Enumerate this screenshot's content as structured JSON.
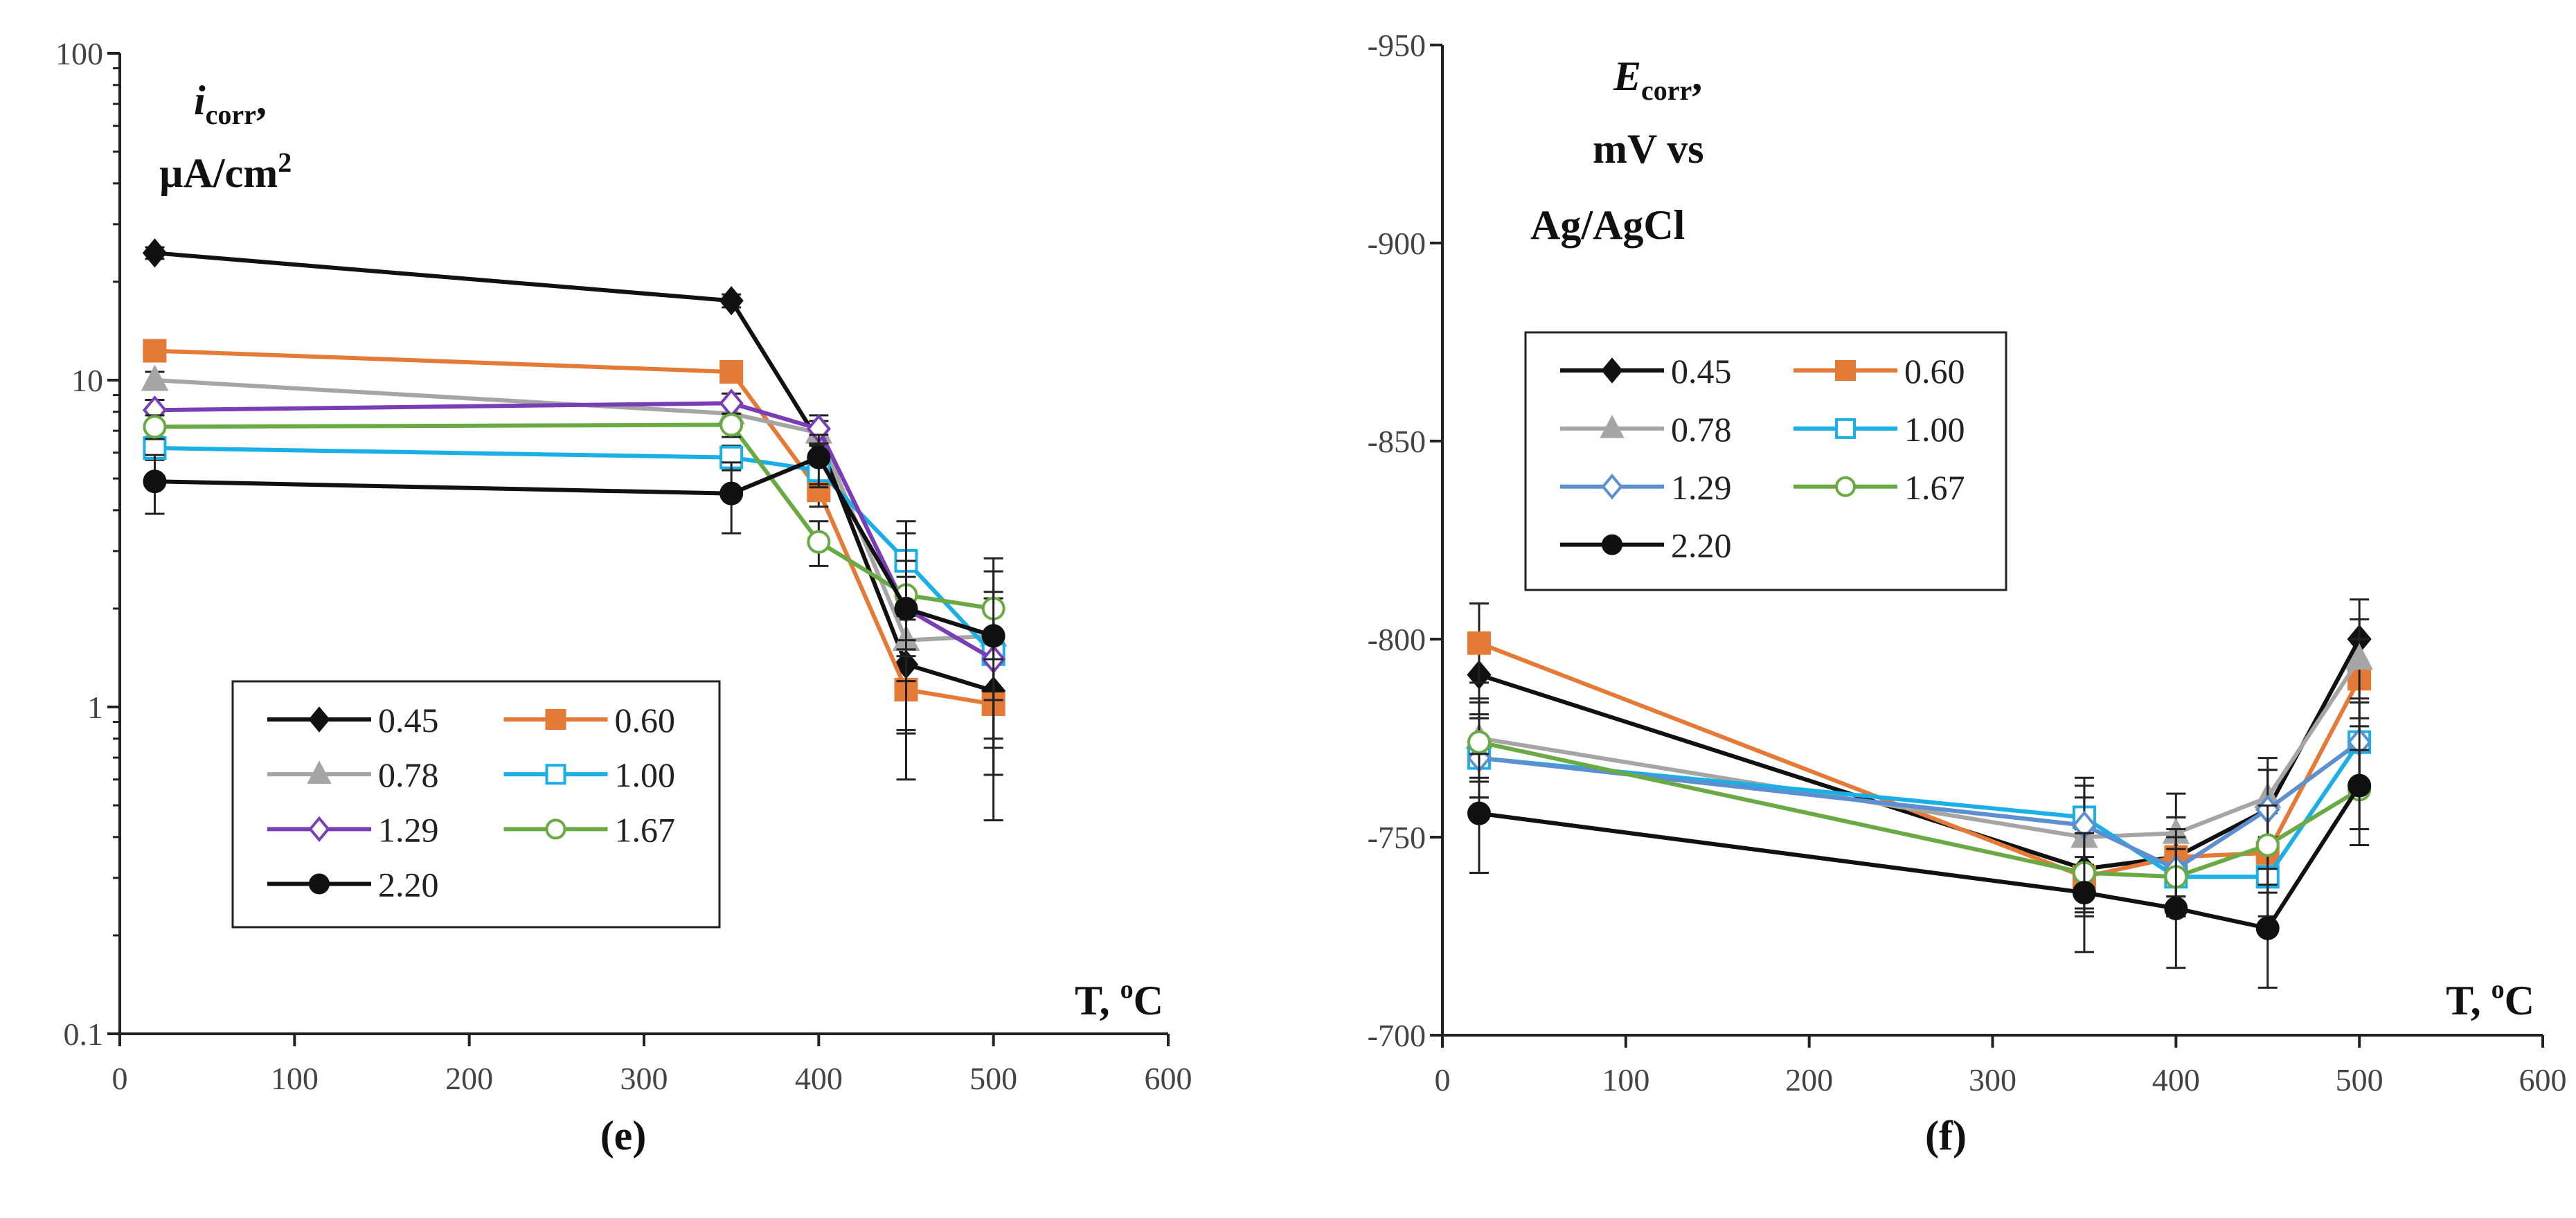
{
  "chart_data": [
    {
      "type": "line",
      "panel_label": "(e)",
      "ylabel_main": "i",
      "ylabel_sub": "corr",
      "ylabel_suffix": ",",
      "ylabel_unit": "µA/cm",
      "ylabel_unit_sup": "2",
      "xlabel": "T, ",
      "xlabel_sup": "o",
      "xlabel_tail": "C",
      "yscale": "log",
      "xlim": [
        0,
        600
      ],
      "ylim": [
        0.1,
        100
      ],
      "xticks": [
        "0",
        "100",
        "200",
        "300",
        "400",
        "500",
        "600"
      ],
      "yticks": [
        "0.1",
        "1",
        "10",
        "100"
      ],
      "legend_position": "lower-left",
      "x": [
        20,
        350,
        400,
        450,
        500
      ],
      "series": [
        {
          "name": "0.45",
          "color": "#111111",
          "marker": "diamond",
          "filled": true,
          "values": [
            24.5,
            17.5,
            6.5,
            1.35,
            1.12
          ],
          "yerr": [
            1.0,
            0.8,
            1.0,
            0.5,
            0.5
          ]
        },
        {
          "name": "0.60",
          "color": "#E47A35",
          "marker": "square",
          "filled": true,
          "values": [
            12.3,
            10.6,
            4.6,
            1.13,
            1.02
          ],
          "yerr": [
            0.6,
            0.6,
            0.5,
            0.3,
            0.4
          ]
        },
        {
          "name": "0.78",
          "color": "#A5A5A5",
          "marker": "triangle",
          "filled": true,
          "values": [
            10.0,
            7.9,
            6.9,
            1.6,
            1.65
          ],
          "yerr": [
            0.6,
            0.6,
            0.6,
            0.4,
            0.6
          ]
        },
        {
          "name": "1.00",
          "color": "#1AAFE6",
          "marker": "square",
          "filled": false,
          "values": [
            6.2,
            5.8,
            5.3,
            2.8,
            1.45
          ],
          "yerr": [
            0.5,
            0.5,
            0.6,
            0.9,
            0.7
          ]
        },
        {
          "name": "1.29",
          "color": "#7A3DB8",
          "marker": "diamond",
          "filled": false,
          "values": [
            8.1,
            8.5,
            7.1,
            2.0,
            1.4
          ],
          "yerr": [
            0.6,
            0.6,
            0.7,
            0.5,
            0.6
          ]
        },
        {
          "name": "1.67",
          "color": "#6AAA45",
          "marker": "circle",
          "filled": false,
          "values": [
            7.2,
            7.3,
            3.2,
            2.2,
            2.0
          ],
          "yerr": [
            0.6,
            0.6,
            0.5,
            0.6,
            0.6
          ]
        },
        {
          "name": "2.20",
          "color": "#111111",
          "marker": "circle",
          "filled": true,
          "values": [
            4.9,
            4.5,
            5.8,
            2.0,
            1.65
          ],
          "yerr": [
            1.0,
            1.1,
            1.0,
            1.4,
            1.2
          ]
        }
      ]
    },
    {
      "type": "line",
      "panel_label": "(f)",
      "ylabel_main": "E",
      "ylabel_sub": "corr",
      "ylabel_suffix": ",",
      "ylabel_unit": "mV vs",
      "ylabel_unit2": "Ag/AgCl",
      "xlabel": "T, ",
      "xlabel_sup": "o",
      "xlabel_tail": "C",
      "yscale": "linear",
      "y_reversed": true,
      "xlim": [
        0,
        600
      ],
      "ylim": [
        -700,
        -950
      ],
      "xticks": [
        "0",
        "100",
        "200",
        "300",
        "400",
        "500",
        "600"
      ],
      "yticks": [
        "-700",
        "-750",
        "-800",
        "-850",
        "-900",
        "-950"
      ],
      "legend_position": "upper-left",
      "x": [
        20,
        350,
        400,
        450,
        500
      ],
      "series": [
        {
          "name": "0.45",
          "color": "#111111",
          "marker": "diamond",
          "filled": true,
          "values": [
            -791,
            -742,
            -745,
            -757,
            -800
          ],
          "yerr": [
            10,
            10,
            10,
            10,
            10
          ]
        },
        {
          "name": "0.60",
          "color": "#E47A35",
          "marker": "square",
          "filled": true,
          "values": [
            -799,
            -740,
            -745,
            -746,
            -790
          ],
          "yerr": [
            10,
            10,
            10,
            10,
            10
          ]
        },
        {
          "name": "0.78",
          "color": "#A5A5A5",
          "marker": "triangle",
          "filled": true,
          "values": [
            -775,
            -750,
            -751,
            -760,
            -795
          ],
          "yerr": [
            10,
            10,
            10,
            10,
            10
          ]
        },
        {
          "name": "1.00",
          "color": "#1AAFE6",
          "marker": "square",
          "filled": false,
          "values": [
            -770,
            -755,
            -740,
            -740,
            -774
          ],
          "yerr": [
            10,
            10,
            10,
            10,
            10
          ]
        },
        {
          "name": "1.29",
          "color": "#5B8FD0",
          "marker": "diamond",
          "filled": false,
          "values": [
            -770,
            -753,
            -742,
            -757,
            -774
          ],
          "yerr": [
            10,
            10,
            10,
            10,
            10
          ]
        },
        {
          "name": "1.67",
          "color": "#6AAA45",
          "marker": "circle",
          "filled": false,
          "values": [
            -774,
            -741,
            -740,
            -748,
            -762
          ],
          "yerr": [
            10,
            10,
            10,
            10,
            10
          ]
        },
        {
          "name": "2.20",
          "color": "#111111",
          "marker": "circle",
          "filled": true,
          "values": [
            -756,
            -736,
            -732,
            -727,
            -763
          ],
          "yerr": [
            15,
            15,
            15,
            15,
            15
          ]
        }
      ]
    }
  ]
}
